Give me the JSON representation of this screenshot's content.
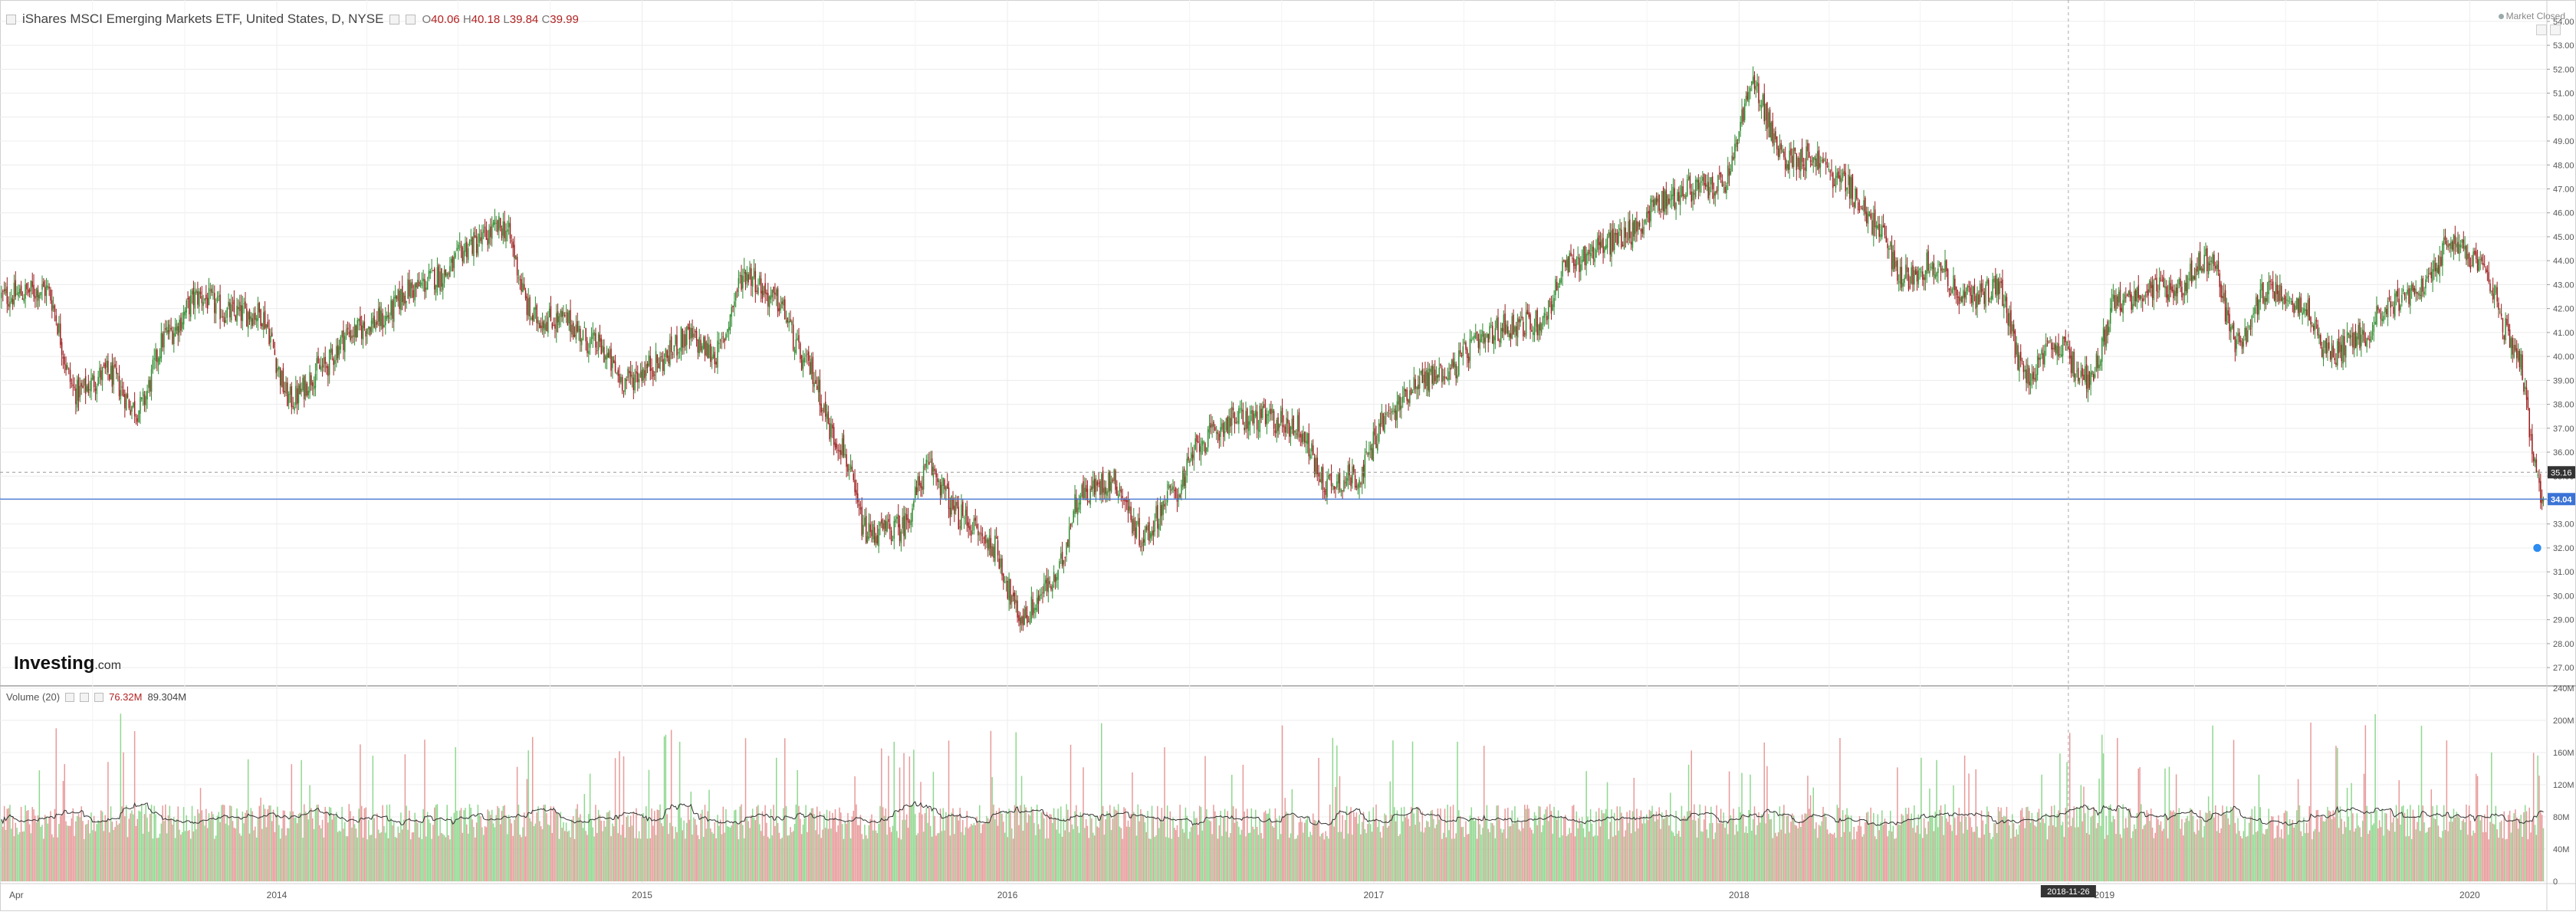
{
  "header": {
    "title": "iShares MSCI Emerging Markets ETF, United States, D, NYSE",
    "open": "40.06",
    "high": "40.18",
    "low": "39.84",
    "close": "39.99",
    "open_label": "O",
    "high_label": "H",
    "low_label": "L",
    "close_label": "C",
    "market_status": "Market Closed"
  },
  "logo": {
    "brand": "Investing",
    "suffix": ".com"
  },
  "volume_header": {
    "label": "Volume (20)",
    "value1": "76.32M",
    "value2": "89.304M"
  },
  "colors": {
    "up": "#2e8b2e",
    "down": "#9b1c1c",
    "vol_up": "#8fd88f",
    "vol_down": "#e89a9a",
    "last_price_line": "#3b73d6",
    "grid": "#ececec",
    "axis_text": "#555"
  },
  "chart_data": [
    {
      "type": "candlestick",
      "title": "iShares MSCI Emerging Markets ETF, United States, D, NYSE",
      "x_start": "2013-04",
      "x_end": "2020-03",
      "x_tick_labels": [
        "Apr",
        "2014",
        "2015",
        "2016",
        "2017",
        "2018",
        "2019",
        "2020"
      ],
      "crosshair_date_label": "2018-11-26",
      "ylim": [
        26.3,
        54.7
      ],
      "y_tick_labels": [
        "27.00",
        "28.00",
        "29.00",
        "30.00",
        "31.00",
        "32.00",
        "33.00",
        "34.00",
        "35.00",
        "36.00",
        "37.00",
        "38.00",
        "39.00",
        "40.00",
        "41.00",
        "42.00",
        "43.00",
        "44.00",
        "45.00",
        "46.00",
        "47.00",
        "48.00",
        "49.00",
        "50.00",
        "51.00",
        "52.00",
        "53.00",
        "54.00"
      ],
      "last_price": 34.04,
      "crosshair_price": 35.16,
      "grid": true,
      "series": [
        {
          "name": "Close",
          "points": [
            [
              "2013-04",
              42.5
            ],
            [
              "2013-05",
              42.8
            ],
            [
              "2013-06",
              38.5
            ],
            [
              "2013-07",
              39.3
            ],
            [
              "2013-08",
              37.8
            ],
            [
              "2013-09",
              41.0
            ],
            [
              "2013-10",
              42.5
            ],
            [
              "2013-11",
              41.8
            ],
            [
              "2013-12",
              41.8
            ],
            [
              "2014-01",
              38.2
            ],
            [
              "2014-02",
              39.5
            ],
            [
              "2014-03",
              41.0
            ],
            [
              "2014-04",
              41.5
            ],
            [
              "2014-05",
              42.8
            ],
            [
              "2014-06",
              43.4
            ],
            [
              "2014-07",
              44.7
            ],
            [
              "2014-08",
              45.4
            ],
            [
              "2014-09",
              41.6
            ],
            [
              "2014-10",
              41.5
            ],
            [
              "2014-11",
              40.5
            ],
            [
              "2014-12",
              39.0
            ],
            [
              "2015-01",
              39.7
            ],
            [
              "2015-02",
              40.8
            ],
            [
              "2015-03",
              40.1
            ],
            [
              "2015-04",
              43.5
            ],
            [
              "2015-05",
              42.3
            ],
            [
              "2015-06",
              39.6
            ],
            [
              "2015-07",
              36.5
            ],
            [
              "2015-08",
              32.6
            ],
            [
              "2015-09",
              32.8
            ],
            [
              "2015-10",
              35.3
            ],
            [
              "2015-11",
              33.3
            ],
            [
              "2015-12",
              32.2
            ],
            [
              "2016-01",
              29.1
            ],
            [
              "2016-02",
              30.5
            ],
            [
              "2016-03",
              34.3
            ],
            [
              "2016-04",
              34.8
            ],
            [
              "2016-05",
              32.5
            ],
            [
              "2016-06",
              34.3
            ],
            [
              "2016-07",
              36.5
            ],
            [
              "2016-08",
              37.4
            ],
            [
              "2016-09",
              37.4
            ],
            [
              "2016-10",
              37.1
            ],
            [
              "2016-11",
              34.7
            ],
            [
              "2016-12",
              35.0
            ],
            [
              "2017-01",
              37.5
            ],
            [
              "2017-02",
              39.0
            ],
            [
              "2017-03",
              39.4
            ],
            [
              "2017-04",
              40.5
            ],
            [
              "2017-05",
              41.3
            ],
            [
              "2017-06",
              41.4
            ],
            [
              "2017-07",
              43.8
            ],
            [
              "2017-08",
              44.6
            ],
            [
              "2017-09",
              45.2
            ],
            [
              "2017-10",
              46.5
            ],
            [
              "2017-11",
              47.0
            ],
            [
              "2017-12",
              47.1
            ],
            [
              "2018-01",
              51.2
            ],
            [
              "2018-02",
              48.3
            ],
            [
              "2018-03",
              48.3
            ],
            [
              "2018-04",
              47.3
            ],
            [
              "2018-05",
              45.6
            ],
            [
              "2018-06",
              43.3
            ],
            [
              "2018-07",
              43.9
            ],
            [
              "2018-08",
              42.4
            ],
            [
              "2018-09",
              42.9
            ],
            [
              "2018-10",
              39.2
            ],
            [
              "2018-11",
              40.4
            ],
            [
              "2018-12",
              39.1
            ],
            [
              "2019-01",
              42.3
            ],
            [
              "2019-02",
              42.8
            ],
            [
              "2019-03",
              42.9
            ],
            [
              "2019-04",
              44.1
            ],
            [
              "2019-05",
              40.5
            ],
            [
              "2019-06",
              42.9
            ],
            [
              "2019-07",
              42.3
            ],
            [
              "2019-08",
              40.1
            ],
            [
              "2019-09",
              40.9
            ],
            [
              "2019-10",
              42.3
            ],
            [
              "2019-11",
              42.8
            ],
            [
              "2019-12",
              44.9
            ],
            [
              "2020-01",
              43.5
            ],
            [
              "2020-02",
              40.4
            ],
            [
              "2020-03",
              34.0
            ]
          ]
        },
        {
          "name": "Volume (20)",
          "unit": "M",
          "ylim": [
            0,
            240
          ],
          "y_tick_labels": [
            "0",
            "40M",
            "80M",
            "120M",
            "160M",
            "200M",
            "240M"
          ],
          "typical_range": [
            40,
            120
          ],
          "moving_average_period": 20
        }
      ]
    }
  ]
}
